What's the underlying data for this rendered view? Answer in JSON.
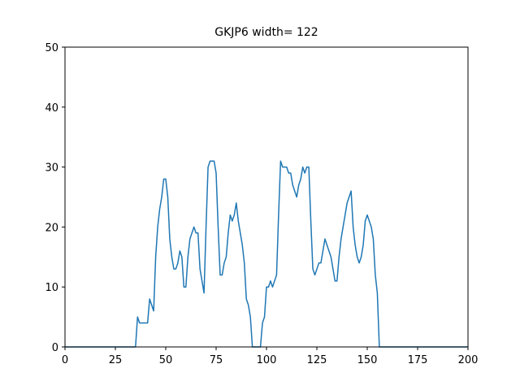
{
  "chart_data": {
    "type": "line",
    "title": "GKJP6 width= 122",
    "x": [
      0,
      35,
      36,
      37,
      38,
      39,
      40,
      41,
      42,
      43,
      44,
      45,
      46,
      47,
      48,
      49,
      50,
      51,
      52,
      53,
      54,
      55,
      56,
      57,
      58,
      59,
      60,
      61,
      62,
      63,
      64,
      65,
      66,
      67,
      68,
      69,
      70,
      71,
      72,
      73,
      74,
      75,
      76,
      77,
      78,
      79,
      80,
      81,
      82,
      83,
      84,
      85,
      86,
      87,
      88,
      89,
      90,
      91,
      92,
      93,
      97,
      98,
      99,
      100,
      101,
      102,
      103,
      104,
      105,
      106,
      107,
      108,
      109,
      110,
      111,
      112,
      113,
      114,
      115,
      116,
      117,
      118,
      119,
      120,
      121,
      122,
      123,
      124,
      125,
      126,
      127,
      128,
      129,
      130,
      131,
      132,
      133,
      134,
      135,
      136,
      137,
      138,
      139,
      140,
      141,
      142,
      143,
      144,
      145,
      146,
      147,
      148,
      149,
      150,
      151,
      152,
      153,
      154,
      155,
      156,
      200
    ],
    "series": [
      {
        "color": "#1f77b4",
        "values": [
          0,
          0,
          5,
          4,
          4,
          4,
          4,
          4,
          8,
          7,
          6,
          15,
          20,
          23,
          25,
          28,
          28,
          25,
          18,
          15,
          13,
          13,
          14,
          16,
          15,
          10,
          10,
          15,
          18,
          19,
          20,
          19,
          19,
          13,
          11,
          9,
          20,
          30,
          31,
          31,
          31,
          29,
          20,
          12,
          12,
          14,
          15,
          19,
          22,
          21,
          22,
          24,
          21,
          19,
          17,
          14,
          8,
          7,
          5,
          0,
          0,
          4,
          5,
          10,
          10,
          11,
          10,
          11,
          12,
          22,
          31,
          30,
          30,
          30,
          29,
          29,
          27,
          26,
          25,
          27,
          28,
          30,
          29,
          30,
          30,
          21,
          13,
          12,
          13,
          14,
          14,
          16,
          18,
          17,
          16,
          15,
          13,
          11,
          11,
          15,
          18,
          20,
          22,
          24,
          25,
          26,
          20,
          17,
          15,
          14,
          15,
          17,
          21,
          22,
          21,
          20,
          18,
          12,
          9,
          0,
          0
        ]
      }
    ],
    "xlim": [
      0,
      200
    ],
    "ylim": [
      0,
      50
    ],
    "xticks": [
      0,
      25,
      50,
      75,
      100,
      125,
      150,
      175,
      200
    ],
    "yticks": [
      0,
      10,
      20,
      30,
      40,
      50
    ],
    "grid": false
  }
}
